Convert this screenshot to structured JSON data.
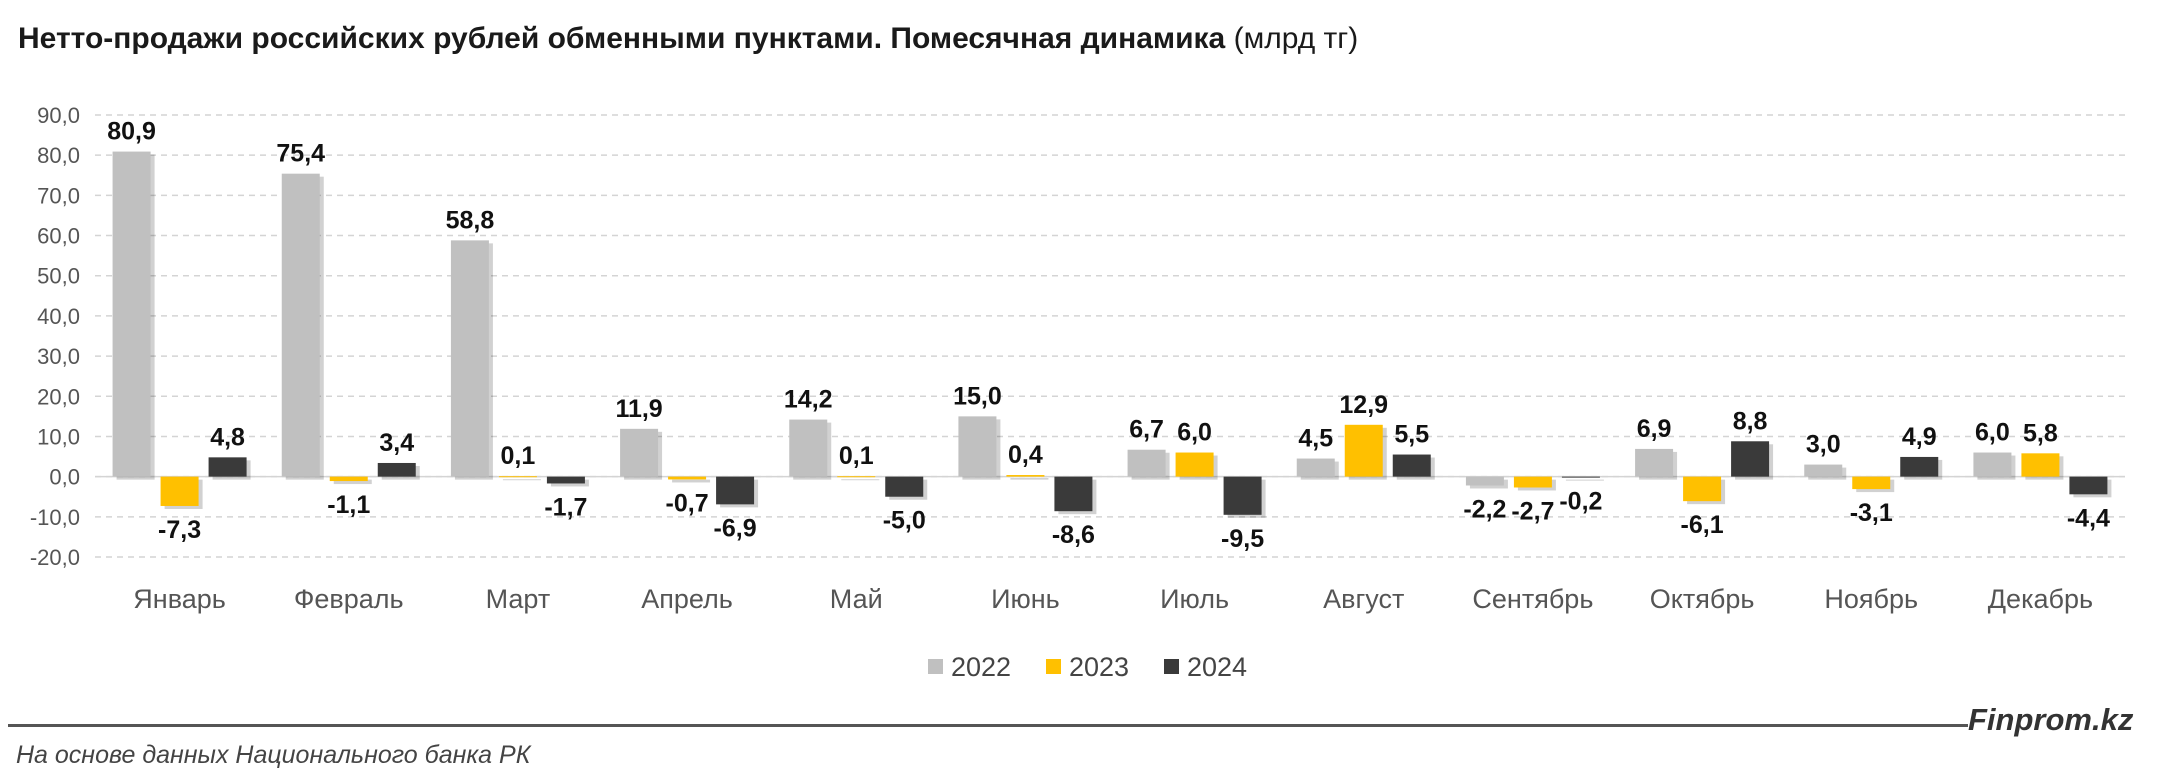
{
  "title": {
    "bold_part": "Нетто-продажи российских рублей обменными пунктами. Помесячная динамика",
    "unit_part": "(млрд тг)"
  },
  "source": "На основе данных Национального банка РК",
  "brand": "Finprom.kz",
  "colors": {
    "2022": "#c0c0c0",
    "2023": "#ffc000",
    "2024": "#3a3a3a"
  },
  "chart_data": {
    "type": "bar",
    "title": "Нетто-продажи российских рублей обменными пунктами. Помесячная динамика (млрд тг)",
    "xlabel": "",
    "ylabel": "",
    "ylim": [
      -20,
      90
    ],
    "yticks": [
      "90,0",
      "80,0",
      "70,0",
      "60,0",
      "50,0",
      "40,0",
      "30,0",
      "20,0",
      "10,0",
      "0,0",
      "-10,0",
      "-20,0"
    ],
    "grid": true,
    "legend_position": "bottom",
    "categories": [
      "Январь",
      "Февраль",
      "Март",
      "Апрель",
      "Май",
      "Июнь",
      "Июль",
      "Август",
      "Сентябрь",
      "Октябрь",
      "Ноябрь",
      "Декабрь"
    ],
    "series": [
      {
        "name": "2022",
        "values": [
          80.9,
          75.4,
          58.8,
          11.9,
          14.2,
          15.0,
          6.7,
          4.5,
          -2.2,
          6.9,
          3.0,
          6.0
        ],
        "labels": [
          "80,9",
          "75,4",
          "58,8",
          "11,9",
          "14,2",
          "15,0",
          "6,7",
          "4,5",
          "-2,2",
          "6,9",
          "3,0",
          "6,0"
        ]
      },
      {
        "name": "2023",
        "values": [
          -7.3,
          -1.1,
          0.1,
          -0.7,
          0.1,
          0.4,
          6.0,
          12.9,
          -2.7,
          -6.1,
          -3.1,
          5.8
        ],
        "labels": [
          "-7,3",
          "-1,1",
          "0,1",
          "-0,7",
          "0,1",
          "0,4",
          "6,0",
          "12,9",
          "-2,7",
          "-6,1",
          "-3,1",
          "5,8"
        ]
      },
      {
        "name": "2024",
        "values": [
          4.8,
          3.4,
          -1.7,
          -6.9,
          -5.0,
          -8.6,
          -9.5,
          5.5,
          -0.2,
          8.8,
          4.9,
          -4.4
        ],
        "labels": [
          "4,8",
          "3,4",
          "-1,7",
          "-6,9",
          "-5,0",
          "-8,6",
          "-9,5",
          "5,5",
          "-0,2",
          "8,8",
          "4,9",
          "-4,4"
        ]
      }
    ]
  }
}
